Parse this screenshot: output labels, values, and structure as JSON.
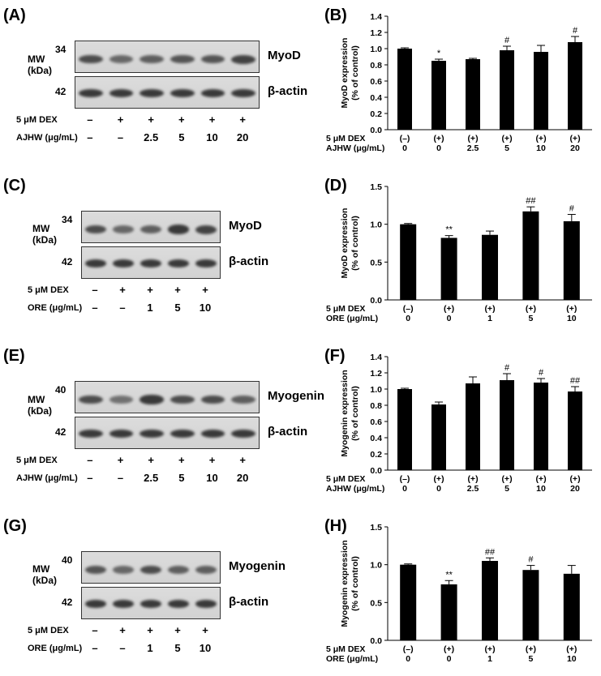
{
  "westerns": [
    {
      "id": "A",
      "label": "(A)",
      "mw_title": [
        "MW",
        "(kDa)"
      ],
      "mw_top": "34",
      "mw_bottom": "42",
      "protein": "MyoD",
      "actin": "β-actin",
      "row1_label": "5 μM DEX",
      "row1": [
        "–",
        "+",
        "+",
        "+",
        "+",
        "+"
      ],
      "row2_label": "AJHW (μg/mL)",
      "row2": [
        "–",
        "–",
        "2.5",
        "5",
        "10",
        "20"
      ],
      "top_band_intensity": [
        0.75,
        0.6,
        0.65,
        0.7,
        0.7,
        0.8
      ]
    },
    {
      "id": "C",
      "label": "(C)",
      "mw_title": [
        "MW",
        "(kDa)"
      ],
      "mw_top": "34",
      "mw_bottom": "42",
      "protein": "MyoD",
      "actin": "β-actin",
      "row1_label": "5 μM DEX",
      "row1": [
        "–",
        "+",
        "+",
        "+",
        "+"
      ],
      "row2_label": "ORE (μg/mL)",
      "row2": [
        "–",
        "–",
        "1",
        "5",
        "10"
      ],
      "top_band_intensity": [
        0.75,
        0.6,
        0.65,
        0.85,
        0.8
      ]
    },
    {
      "id": "E",
      "label": "(E)",
      "mw_title": [
        "MW",
        "(kDa)"
      ],
      "mw_top": "40",
      "mw_bottom": "42",
      "protein": "Myogenin",
      "actin": "β-actin",
      "row1_label": "5 μM DEX",
      "row1": [
        "–",
        "+",
        "+",
        "+",
        "+",
        "+"
      ],
      "row2_label": "AJHW (μg/mL)",
      "row2": [
        "–",
        "–",
        "2.5",
        "5",
        "10",
        "20"
      ],
      "top_band_intensity": [
        0.75,
        0.55,
        0.85,
        0.75,
        0.75,
        0.65
      ]
    },
    {
      "id": "G",
      "label": "(G)",
      "mw_title": [
        "MW",
        "(kDa)"
      ],
      "mw_top": "40",
      "mw_bottom": "42",
      "protein": "Myogenin",
      "actin": "β-actin",
      "row1_label": "5 μM DEX",
      "row1": [
        "–",
        "+",
        "+",
        "+",
        "+"
      ],
      "row2_label": "ORE (μg/mL)",
      "row2": [
        "–",
        "–",
        "1",
        "5",
        "10"
      ],
      "top_band_intensity": [
        0.7,
        0.6,
        0.75,
        0.65,
        0.65
      ]
    }
  ],
  "chart_data": [
    {
      "id": "B",
      "label": "(B)",
      "type": "bar",
      "ylabel": [
        "MyoD expression",
        "(% of control)"
      ],
      "ylim": [
        0,
        1.4
      ],
      "yticks": [
        "0.0",
        "0.2",
        "0.4",
        "0.6",
        "0.8",
        "1.0",
        "1.2",
        "1.4"
      ],
      "ytick_values": [
        0,
        0.2,
        0.4,
        0.6,
        0.8,
        1.0,
        1.2,
        1.4
      ],
      "row1_label": "5 μM DEX",
      "row1": [
        "(–)",
        "(+)",
        "(+)",
        "(+)",
        "(+)",
        "(+)"
      ],
      "row2_label": "AJHW (μg/mL)",
      "row2": [
        "0",
        "0",
        "2.5",
        "5",
        "10",
        "20"
      ],
      "values": [
        1.0,
        0.85,
        0.87,
        0.98,
        0.96,
        1.08
      ],
      "errors": [
        0.01,
        0.02,
        0.01,
        0.05,
        0.08,
        0.07
      ],
      "annotations": [
        "",
        "*",
        "",
        "#",
        "",
        "#"
      ]
    },
    {
      "id": "D",
      "label": "(D)",
      "type": "bar",
      "ylabel": [
        "MyoD expression",
        "(% of control)"
      ],
      "ylim": [
        0,
        1.5
      ],
      "yticks": [
        "0.0",
        "0.5",
        "1.0",
        "1.5"
      ],
      "ytick_values": [
        0,
        0.5,
        1.0,
        1.5
      ],
      "row1_label": "5 μM DEX",
      "row1": [
        "(–)",
        "(+)",
        "(+)",
        "(+)",
        "(+)"
      ],
      "row2_label": "ORE (μg/mL)",
      "row2": [
        "0",
        "0",
        "1",
        "5",
        "10"
      ],
      "values": [
        1.0,
        0.82,
        0.86,
        1.17,
        1.04
      ],
      "errors": [
        0.01,
        0.03,
        0.05,
        0.06,
        0.09
      ],
      "annotations": [
        "",
        "**",
        "",
        "##",
        "#"
      ]
    },
    {
      "id": "F",
      "label": "(F)",
      "type": "bar",
      "ylabel": [
        "Myogenin expression",
        "(% of control)"
      ],
      "ylim": [
        0,
        1.4
      ],
      "yticks": [
        "0.0",
        "0.2",
        "0.4",
        "0.6",
        "0.8",
        "1.0",
        "1.2",
        "1.4"
      ],
      "ytick_values": [
        0,
        0.2,
        0.4,
        0.6,
        0.8,
        1.0,
        1.2,
        1.4
      ],
      "row1_label": "5 μM DEX",
      "row1": [
        "(–)",
        "(+)",
        "(+)",
        "(+)",
        "(+)",
        "(+)"
      ],
      "row2_label": "AJHW (μg/mL)",
      "row2": [
        "0",
        "0",
        "2.5",
        "5",
        "10",
        "20"
      ],
      "values": [
        1.0,
        0.81,
        1.07,
        1.11,
        1.08,
        0.97
      ],
      "errors": [
        0.01,
        0.03,
        0.08,
        0.08,
        0.05,
        0.06
      ],
      "annotations": [
        "",
        "",
        "",
        "#",
        "#",
        "##"
      ]
    },
    {
      "id": "H",
      "label": "(H)",
      "type": "bar",
      "ylabel": [
        "Myogenin expression",
        "(% of control)"
      ],
      "ylim": [
        0,
        1.5
      ],
      "yticks": [
        "0.0",
        "0.5",
        "1.0",
        "1.5"
      ],
      "ytick_values": [
        0,
        0.5,
        1.0,
        1.5
      ],
      "row1_label": "5 μM DEX",
      "row1": [
        "(–)",
        "(+)",
        "(+)",
        "(+)",
        "(+)"
      ],
      "row2_label": "ORE (μg/mL)",
      "row2": [
        "0",
        "0",
        "1",
        "5",
        "10"
      ],
      "values": [
        1.0,
        0.74,
        1.05,
        0.93,
        0.88
      ],
      "errors": [
        0.01,
        0.05,
        0.04,
        0.06,
        0.11
      ],
      "annotations": [
        "",
        "**",
        "##",
        "#",
        ""
      ]
    }
  ]
}
